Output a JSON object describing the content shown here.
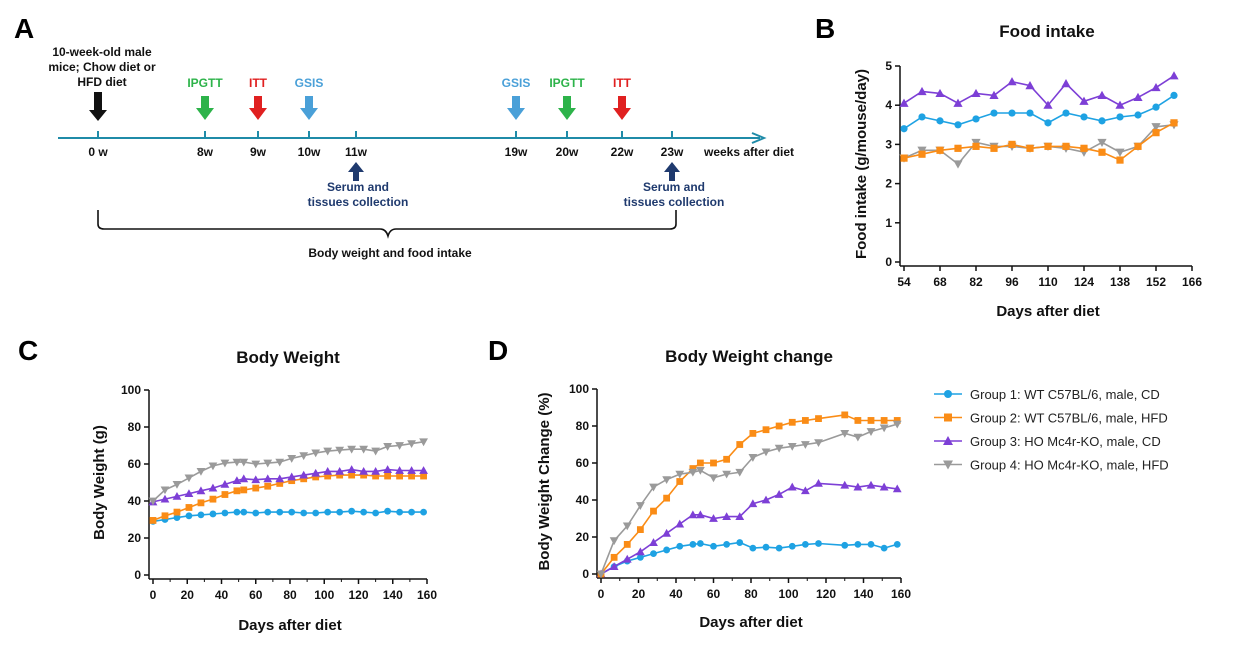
{
  "panel_letters": {
    "a": "A",
    "b": "B",
    "c": "C",
    "d": "D"
  },
  "colors": {
    "g1": "#1ea2e3",
    "g2": "#fa8c16",
    "g3": "#7d3fd6",
    "g4": "#9a9a9a",
    "timeline": "#1f8ba8",
    "green": "#2db34a",
    "red": "#e02020",
    "blue": "#4aa0d8",
    "navy": "#1f3a6e"
  },
  "timeline": {
    "start_note": [
      "10-week-old male",
      "mice; Chow diet or",
      "HFD diet"
    ],
    "axis_label": "weeks after diet",
    "ticks": [
      "0 w",
      "8w",
      "9w",
      "10w",
      "11w",
      "19w",
      "20w",
      "22w",
      "23w"
    ],
    "events": [
      {
        "label": "IPGTT",
        "week": "8w",
        "color": "green"
      },
      {
        "label": "ITT",
        "week": "9w",
        "color": "red"
      },
      {
        "label": "GSIS",
        "week": "10w",
        "color": "blue"
      },
      {
        "label": "GSIS",
        "week": "19w",
        "color": "blue"
      },
      {
        "label": "IPGTT",
        "week": "20w",
        "color": "green"
      },
      {
        "label": "ITT",
        "week": "22w",
        "color": "red"
      }
    ],
    "collections": [
      {
        "week": "11w",
        "lines": [
          "Serum and",
          "tissues collection"
        ]
      },
      {
        "week": "23w",
        "lines": [
          "Serum and",
          "tissues collection"
        ]
      }
    ],
    "brace_label": "Body weight and food intake"
  },
  "legend": [
    "Group 1: WT C57BL/6, male, CD",
    "Group 2: WT C57BL/6, male, HFD",
    "Group 3: HO Mc4r-KO, male, CD",
    "Group 4: HO Mc4r-KO, male, HFD"
  ],
  "chart_data": [
    {
      "id": "B",
      "type": "line",
      "title": "Food intake",
      "xlabel": "Days after diet",
      "ylabel": "Food intake (g/mouse/day)",
      "xlim": [
        54,
        166
      ],
      "ylim": [
        0,
        5
      ],
      "xticks": [
        54,
        68,
        82,
        96,
        110,
        124,
        138,
        152,
        166
      ],
      "yticks": [
        0,
        1,
        2,
        3,
        4,
        5
      ],
      "x": [
        54,
        61,
        68,
        75,
        82,
        89,
        96,
        103,
        110,
        117,
        124,
        131,
        138,
        145,
        152,
        159
      ],
      "series": [
        {
          "group": "g4",
          "marker": "tri-down",
          "values": [
            2.65,
            2.85,
            2.85,
            2.5,
            3.05,
            2.95,
            2.95,
            2.9,
            2.95,
            2.9,
            2.8,
            3.05,
            2.8,
            2.95,
            3.45,
            3.5
          ]
        },
        {
          "group": "g2",
          "marker": "square",
          "values": [
            2.65,
            2.75,
            2.85,
            2.9,
            2.95,
            2.9,
            3.0,
            2.9,
            2.95,
            2.95,
            2.9,
            2.8,
            2.6,
            2.95,
            3.3,
            3.55
          ]
        },
        {
          "group": "g1",
          "marker": "circle",
          "values": [
            3.4,
            3.7,
            3.6,
            3.5,
            3.65,
            3.8,
            3.8,
            3.8,
            3.55,
            3.8,
            3.7,
            3.6,
            3.7,
            3.75,
            3.95,
            4.25
          ]
        },
        {
          "group": "g3",
          "marker": "tri-up",
          "values": [
            4.05,
            4.35,
            4.3,
            4.05,
            4.3,
            4.25,
            4.6,
            4.5,
            4.0,
            4.55,
            4.1,
            4.25,
            4.0,
            4.2,
            4.45,
            4.75
          ]
        }
      ]
    },
    {
      "id": "C",
      "type": "line",
      "title": "Body Weight",
      "xlabel": "Days after diet",
      "ylabel": "Body Weight (g)",
      "xlim": [
        0,
        160
      ],
      "ylim": [
        0,
        100
      ],
      "xticks": [
        0,
        20,
        40,
        60,
        80,
        100,
        120,
        140,
        160
      ],
      "yticks": [
        0,
        20,
        40,
        60,
        80,
        100
      ],
      "x": [
        0,
        7,
        14,
        21,
        28,
        35,
        42,
        49,
        53,
        60,
        67,
        74,
        81,
        88,
        95,
        102,
        109,
        116,
        123,
        130,
        137,
        144,
        151,
        158
      ],
      "series": [
        {
          "group": "g1",
          "marker": "circle",
          "values": [
            29,
            30,
            31,
            32,
            32.5,
            33,
            33.5,
            34,
            34,
            33.5,
            34,
            34,
            34,
            33.5,
            33.5,
            34,
            34,
            34.5,
            34,
            33.5,
            34.5,
            34,
            34,
            34
          ]
        },
        {
          "group": "g2",
          "marker": "square",
          "values": [
            29.5,
            32,
            34,
            36.5,
            39,
            41,
            43.5,
            45.5,
            46,
            47,
            48,
            49.5,
            51,
            52,
            53,
            53.5,
            54,
            54,
            54,
            53.5,
            53.5,
            53.5,
            53.5,
            53.5
          ]
        },
        {
          "group": "g3",
          "marker": "tri-up",
          "values": [
            39.5,
            41,
            42.5,
            44,
            45.5,
            47,
            49,
            51,
            52,
            51.5,
            52,
            52,
            53,
            54,
            55,
            56,
            56,
            57,
            56,
            56,
            57,
            56.5,
            56.5,
            56.5
          ]
        },
        {
          "group": "g4",
          "marker": "tri-down",
          "values": [
            40,
            46,
            49,
            52.5,
            56,
            59,
            60.5,
            61,
            61,
            60,
            60.5,
            61,
            63,
            64.5,
            66,
            67,
            67.5,
            68,
            68,
            67,
            69.5,
            70,
            71,
            72
          ]
        }
      ]
    },
    {
      "id": "D",
      "type": "line",
      "title": "Body Weight change",
      "xlabel": "Days after diet",
      "ylabel": "Body Weight Change (%)",
      "xlim": [
        0,
        160
      ],
      "ylim": [
        0,
        100
      ],
      "xticks": [
        0,
        20,
        40,
        60,
        80,
        100,
        120,
        140,
        160
      ],
      "yticks": [
        0,
        20,
        40,
        60,
        80,
        100
      ],
      "x": [
        0,
        7,
        14,
        21,
        28,
        35,
        42,
        49,
        53,
        60,
        67,
        74,
        81,
        88,
        95,
        102,
        109,
        116,
        130,
        137,
        144,
        151,
        158
      ],
      "series": [
        {
          "group": "g1",
          "marker": "circle",
          "values": [
            0,
            4,
            7,
            9,
            11,
            13,
            15,
            16,
            16.5,
            15,
            16,
            17,
            14,
            14.5,
            14,
            15,
            16,
            16.5,
            15.5,
            16,
            16,
            14,
            16
          ]
        },
        {
          "group": "g3",
          "marker": "tri-up",
          "values": [
            0,
            4,
            8,
            12,
            17,
            22,
            27,
            32,
            32,
            30,
            31,
            31,
            38,
            40,
            43,
            47,
            45,
            49,
            48,
            47,
            48,
            47,
            46
          ]
        },
        {
          "group": "g2",
          "marker": "square",
          "values": [
            0,
            9,
            16,
            24,
            34,
            41,
            50,
            57,
            60,
            60,
            62,
            70,
            76,
            78,
            80,
            82,
            83,
            84,
            86,
            83,
            83,
            83,
            83
          ]
        },
        {
          "group": "g4",
          "marker": "tri-down",
          "values": [
            0,
            18,
            26,
            37,
            47,
            51,
            54,
            55,
            56,
            52,
            54,
            55,
            63,
            66,
            68,
            69,
            70,
            71,
            76,
            74,
            77,
            79,
            81
          ]
        }
      ]
    }
  ]
}
